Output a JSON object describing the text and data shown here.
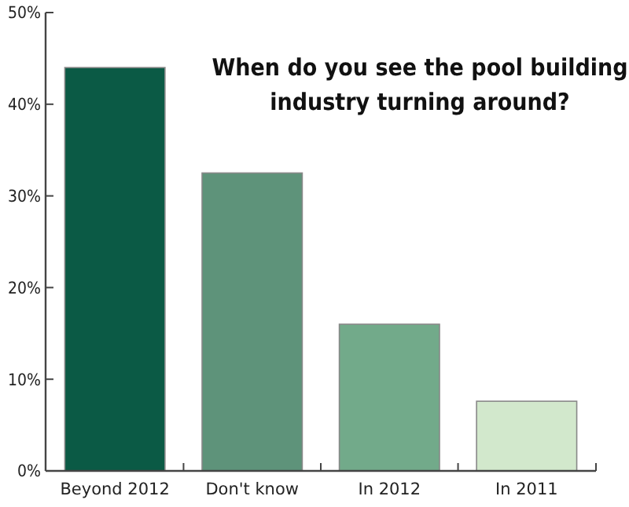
{
  "chart_data": {
    "type": "bar",
    "title": "When do you see the pool building industry turning around?",
    "categories": [
      "Beyond 2012",
      "Don't know",
      "In 2012",
      "In 2011"
    ],
    "values": [
      44,
      32.5,
      16,
      7.6
    ],
    "colors": [
      "#0b5a45",
      "#5e937a",
      "#72aa8a",
      "#d2e8cc"
    ],
    "ylim": [
      0,
      50
    ],
    "yticks": [
      {
        "value": 0,
        "label": "0%"
      },
      {
        "value": 10,
        "label": "10%"
      },
      {
        "value": 20,
        "label": "20%"
      },
      {
        "value": 30,
        "label": "30%"
      },
      {
        "value": 40,
        "label": "40%"
      },
      {
        "value": 50,
        "label": "50%"
      }
    ],
    "grid": false
  }
}
